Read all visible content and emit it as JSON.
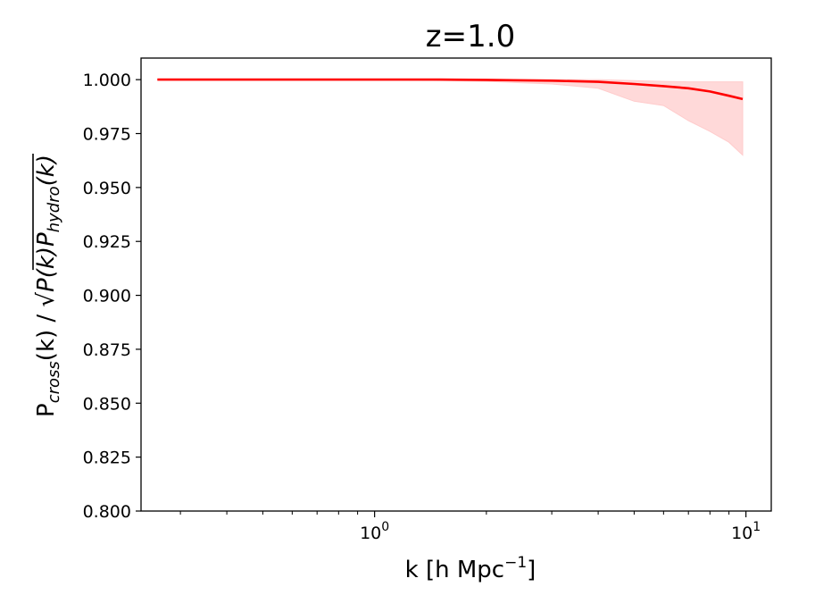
{
  "chart_data": {
    "type": "line",
    "title": "z=1.0",
    "xlabel": {
      "main": "k [h Mpc",
      "sup": "−1",
      "tail": "]"
    },
    "ylabel": {
      "prefix": "P",
      "prefix_sub": "cross",
      "mid": "(k)  /  ",
      "sqrt": "√",
      "rad_a": "P(k)P",
      "rad_sub": "hydro",
      "rad_b": "(k)"
    },
    "xscale": "log",
    "xlim": [
      0.235,
      11.7
    ],
    "ylim": [
      0.8,
      1.01
    ],
    "grid": false,
    "x_ticks_major": [
      {
        "value": 1,
        "base": "10",
        "exp": "0"
      },
      {
        "value": 10,
        "base": "10",
        "exp": "1"
      }
    ],
    "x_ticks_minor": [
      0.3,
      0.4,
      0.5,
      0.6,
      0.7,
      0.8,
      0.9,
      2,
      3,
      4,
      5,
      6,
      7,
      8,
      9
    ],
    "y_ticks": [
      {
        "value": 0.8,
        "label": "0.800"
      },
      {
        "value": 0.825,
        "label": "0.825"
      },
      {
        "value": 0.85,
        "label": "0.850"
      },
      {
        "value": 0.875,
        "label": "0.875"
      },
      {
        "value": 0.9,
        "label": "0.900"
      },
      {
        "value": 0.925,
        "label": "0.925"
      },
      {
        "value": 0.95,
        "label": "0.950"
      },
      {
        "value": 0.975,
        "label": "0.975"
      },
      {
        "value": 1.0,
        "label": "1.000"
      }
    ],
    "series": [
      {
        "color": "#ff0000",
        "band_color": "#ffcccc",
        "x": [
          0.26,
          0.4,
          0.6,
          1.0,
          1.5,
          2.0,
          3.0,
          4.0,
          5.0,
          6.0,
          7.0,
          8.0,
          9.0,
          9.8
        ],
        "y": [
          1.0,
          1.0,
          1.0,
          1.0,
          1.0,
          0.9999,
          0.9995,
          0.999,
          0.998,
          0.997,
          0.996,
          0.9945,
          0.9925,
          0.991
        ],
        "lower": [
          1.0,
          1.0,
          1.0,
          1.0,
          0.9996,
          0.9992,
          0.998,
          0.996,
          0.99,
          0.988,
          0.981,
          0.976,
          0.971,
          0.965
        ],
        "upper": [
          1.0,
          1.0,
          1.0,
          1.0,
          1.0,
          1.0,
          1.0,
          1.0,
          0.9995,
          0.9992,
          0.999,
          0.999,
          0.999,
          0.999
        ]
      }
    ]
  }
}
